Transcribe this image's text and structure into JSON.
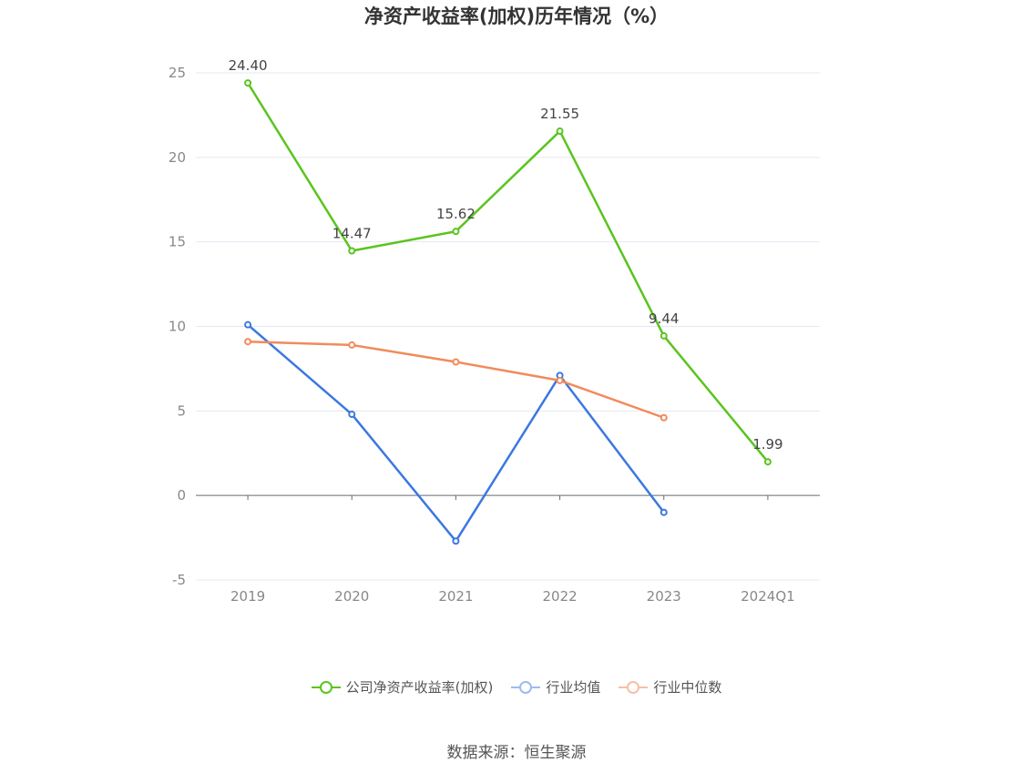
{
  "chart_data": {
    "type": "line",
    "title": "净资产收益率(加权)历年情况（%）",
    "categories": [
      "2019",
      "2020",
      "2021",
      "2022",
      "2023",
      "2024Q1"
    ],
    "ylim": [
      -5,
      25
    ],
    "yticks": [
      -5,
      0,
      5,
      10,
      15,
      20,
      25
    ],
    "grid": true,
    "legend_position": "bottom",
    "series": [
      {
        "name": "公司净资产收益率(加权)",
        "color": "#5ac41f",
        "values": [
          24.4,
          14.47,
          15.62,
          21.55,
          9.44,
          1.99
        ],
        "labels": [
          "24.40",
          "14.47",
          "15.62",
          "21.55",
          "9.44",
          "1.99"
        ]
      },
      {
        "name": "行业均值",
        "color": "#3b78e0",
        "values": [
          10.1,
          4.8,
          -2.7,
          7.1,
          -1.0,
          null
        ]
      },
      {
        "name": "行业中位数",
        "color": "#f28a5b",
        "values": [
          9.1,
          8.9,
          7.9,
          6.8,
          4.6,
          null
        ]
      }
    ]
  },
  "legend": {
    "items": [
      {
        "label": "公司净资产收益率(加权)",
        "color": "#5ac41f"
      },
      {
        "label": "行业均值",
        "color": "#3b78e0"
      },
      {
        "label": "行业中位数",
        "color": "#f28a5b"
      }
    ]
  },
  "source": "数据来源：恒生聚源"
}
